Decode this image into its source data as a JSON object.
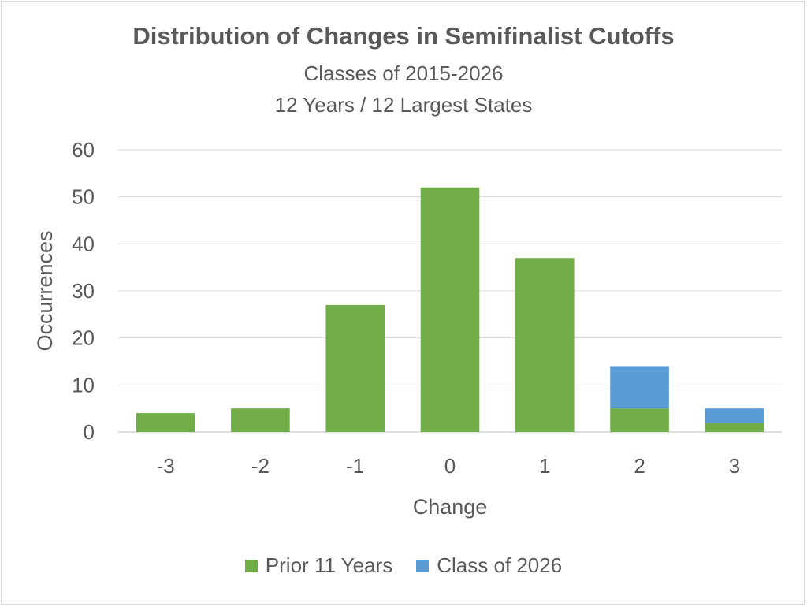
{
  "chart_data": {
    "type": "bar",
    "stacked": true,
    "title": "Distribution of Changes in Semifinalist Cutoffs",
    "subtitle_lines": [
      "Classes of 2015-2026",
      "12 Years / 12 Largest States"
    ],
    "xlabel": "Change",
    "ylabel": "Occurrences",
    "categories": [
      "-3",
      "-2",
      "-1",
      "0",
      "1",
      "2",
      "3"
    ],
    "series": [
      {
        "name": "Prior 11 Years",
        "color": "#70ad47",
        "values": [
          4,
          5,
          27,
          52,
          37,
          5,
          2
        ]
      },
      {
        "name": "Class of 2026",
        "color": "#5b9bd5",
        "values": [
          0,
          0,
          0,
          0,
          0,
          9,
          3
        ]
      }
    ],
    "ylim": [
      0,
      60
    ],
    "yticks": [
      0,
      10,
      20,
      30,
      40,
      50,
      60
    ],
    "grid": true,
    "legend_position": "bottom"
  }
}
